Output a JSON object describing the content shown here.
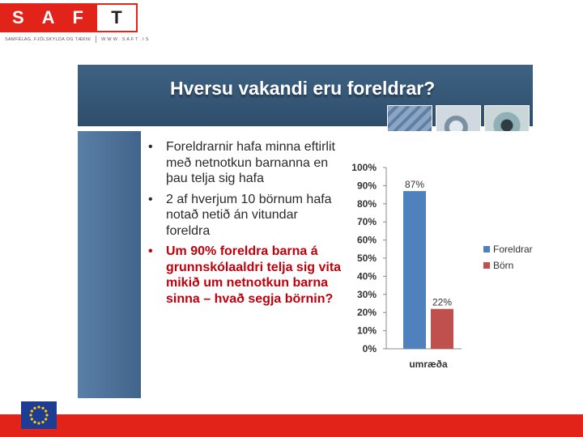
{
  "logo": {
    "letters": [
      "S",
      "A",
      "F"
    ],
    "box_letter": "T",
    "tagline": "SAMFÉLAG, FJÖLSKYLDA OG TÆKNI",
    "url": "W W W . S A F T . I S"
  },
  "slide": {
    "title": "Hversu vakandi eru foreldrar?",
    "bullets": [
      {
        "text": "Foreldrarnir hafa minna eftirlit með netnotkun barnanna  en þau telja sig hafa",
        "highlight": false
      },
      {
        "text": "2 af hverjum  10 börnum hafa notað netið án vitundar  foreldra",
        "highlight": false
      },
      {
        "text": "Um 90% foreldra barna á grunnskólaaldri telja sig vita mikið um netnotkun barna sinna – hvað segja börnin?",
        "highlight": true
      }
    ],
    "bullet_glyph": "•"
  },
  "colors": {
    "brand_red": "#e2231a",
    "header_blue": "#3f6283",
    "highlight_red": "#c0000b",
    "series_parents": "#4f81bd",
    "series_children": "#c0504d"
  },
  "chart_data": {
    "type": "bar",
    "categories": [
      "umræða"
    ],
    "series": [
      {
        "name": "Foreldrar",
        "values": [
          87
        ],
        "label": "87%"
      },
      {
        "name": "Börn",
        "values": [
          22
        ],
        "label": "22%"
      }
    ],
    "y_ticks": [
      "0%",
      "10%",
      "20%",
      "30%",
      "40%",
      "50%",
      "60%",
      "70%",
      "80%",
      "90%",
      "100%"
    ],
    "ylim": [
      0,
      100
    ],
    "legend": "right",
    "grid": false
  },
  "icons": {
    "eu_flag": "eu-flag-icon"
  }
}
